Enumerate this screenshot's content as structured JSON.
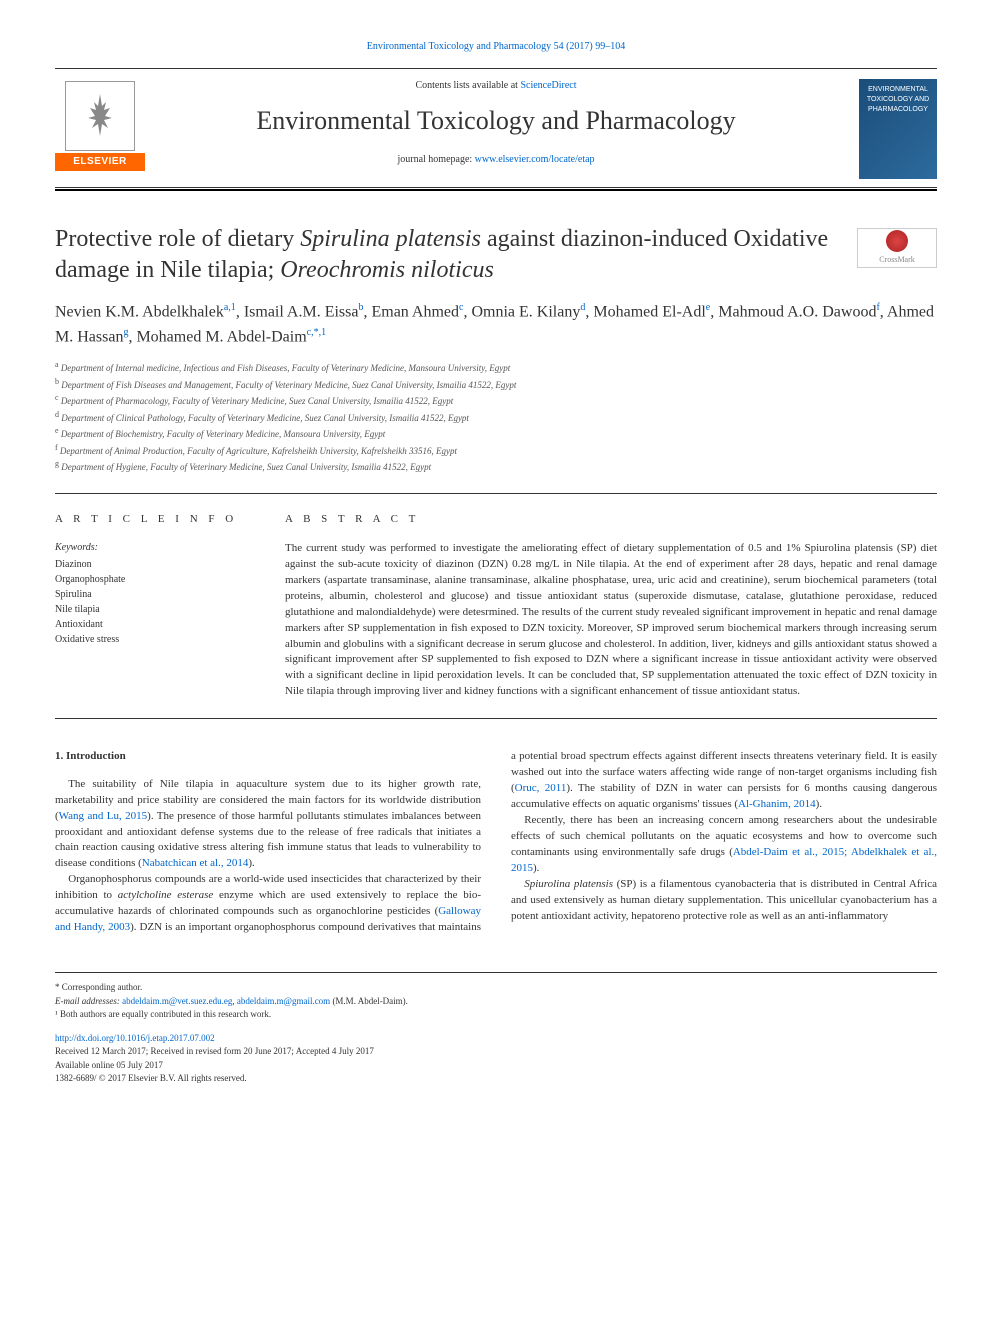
{
  "top_citation_link": "Environmental Toxicology and Pharmacology 54 (2017) 99–104",
  "header": {
    "contents_prefix": "Contents lists available at ",
    "contents_link": "ScienceDirect",
    "journal_name": "Environmental Toxicology and Pharmacology",
    "homepage_prefix": "journal homepage: ",
    "homepage_link": "www.elsevier.com/locate/etap",
    "elsevier": "ELSEVIER",
    "cover_text": "ENVIRONMENTAL TOXICOLOGY AND PHARMACOLOGY"
  },
  "crossmark_label": "CrossMark",
  "title_parts": {
    "pre": "Protective role of dietary ",
    "it1": "Spirulina platensis",
    "mid": " against diazinon-induced Oxidative damage in Nile tilapia; ",
    "it2": "Oreochromis niloticus"
  },
  "authors_html": "Nevien K.M. Abdelkhalek<sup>a,1</sup>, Ismail A.M. Eissa<sup>b</sup>, Eman Ahmed<sup>c</sup>, Omnia E. Kilany<sup>d</sup>, Mohamed El-Adl<sup>e</sup>, Mahmoud A.O. Dawood<sup>f</sup>, Ahmed M. Hassan<sup>g</sup>, Mohamed M. Abdel-Daim<sup>c,*,1</sup>",
  "affiliations": [
    {
      "sup": "a",
      "text": "Department of Internal medicine, Infectious and Fish Diseases, Faculty of Veterinary Medicine, Mansoura University, Egypt"
    },
    {
      "sup": "b",
      "text": "Department of Fish Diseases and Management, Faculty of Veterinary Medicine, Suez Canal University, Ismailia 41522, Egypt"
    },
    {
      "sup": "c",
      "text": "Department of Pharmacology, Faculty of Veterinary Medicine, Suez Canal University, Ismailia 41522, Egypt"
    },
    {
      "sup": "d",
      "text": "Department of Clinical Pathology, Faculty of Veterinary Medicine, Suez Canal University, Ismailia 41522, Egypt"
    },
    {
      "sup": "e",
      "text": "Department of Biochemistry, Faculty of Veterinary Medicine, Mansoura University, Egypt"
    },
    {
      "sup": "f",
      "text": "Department of Animal Production, Faculty of Agriculture, Kafrelsheikh University, Kafrelsheikh 33516, Egypt"
    },
    {
      "sup": "g",
      "text": "Department of Hygiene, Faculty of Veterinary Medicine, Suez Canal University, Ismailia 41522, Egypt"
    }
  ],
  "article_info": {
    "label": "A R T I C L E  I N F O",
    "keywords_label": "Keywords:",
    "keywords": [
      "Diazinon",
      "Organophosphate",
      "Spirulina",
      "Nile tilapia",
      "Antioxidant",
      "Oxidative stress"
    ]
  },
  "abstract": {
    "label": "A B S T R A C T",
    "text": "The current study was performed to investigate the ameliorating effect of dietary supplementation of 0.5 and 1% Spiurolina platensis (SP) diet against the sub-acute toxicity of diazinon (DZN) 0.28 mg/L in Nile tilapia. At the end of experiment after 28 days, hepatic and renal damage markers (aspartate transaminase, alanine transaminase, alkaline phosphatase, urea, uric acid and creatinine), serum biochemical parameters (total proteins, albumin, cholesterol and glucose) and tissue antioxidant status (superoxide dismutase, catalase, glutathione peroxidase, reduced glutathione and malondialdehyde) were detesrmined. The results of the current study revealed significant improvement in hepatic and renal damage markers after SP supplementation in fish exposed to DZN toxicity. Moreover, SP improved serum biochemical markers through increasing serum albumin and globulins with a significant decrease in serum glucose and cholesterol. In addition, liver, kidneys and gills antioxidant status showed a significant improvement after SP supplemented to fish exposed to DZN where a significant increase in tissue antioxidant activity were observed with a significant decline in lipid peroxidation levels. It can be concluded that, SP supplementation attenuated the toxic effect of DZN toxicity in Nile tilapia through improving liver and kidney functions with a significant enhancement of tissue antioxidant status."
  },
  "body": {
    "heading": "1. Introduction",
    "p1a": "The suitability of Nile tilapia in aquaculture system due to its higher growth rate, marketability and price stability are considered the main factors for its worldwide distribution (",
    "p1_link1": "Wang and Lu, 2015",
    "p1b": "). The presence of those harmful pollutants stimulates imbalances between prooxidant and antioxidant defense systems due to the release of free radicals that initiates a chain reaction causing oxidative stress altering fish immune status that leads to vulnerability to disease conditions (",
    "p1_link2": "Nabatchican et al., 2014",
    "p1c": ").",
    "p2a": "Organophosphorus compounds are a world-wide used insecticides that characterized by their inhibition to ",
    "p2_it": "actylcholine esterase",
    "p2b": " enzyme which are used extensively to replace the bio-accumulative hazards of chlorinated compounds such as organochlorine pesticides (",
    "p2_link": "Galloway and Handy, 2003",
    "p2c": "). DZN is an important organophosphorus compound derivatives that maintains a potential broad spectrum effects against different insects threatens veterinary field. It is easily washed out into the surface waters affecting wide range of non-target organisms including fish (",
    "p2_link2": "Oruc, 2011",
    "p2d": "). The stability of DZN in water can persists for 6 months causing dangerous accumulative effects on aquatic organisms' tissues (",
    "p2_link3": "Al-Ghanim, 2014",
    "p2e": ").",
    "p3a": "Recently, there has been an increasing concern among researchers about the undesirable effects of such chemical pollutants on the aquatic ecosystems and how to overcome such contaminants using environmentally safe drugs (",
    "p3_link": "Abdel-Daim et al., 2015; Abdelkhalek et al., 2015",
    "p3b": ").",
    "p4_it": "Spiurolina platensis",
    "p4a": " (SP) is a filamentous cyanobacteria that is distributed in Central Africa and used extensively as human dietary supplementation. This unicellular cyanobacterium has a potent antioxidant activity, hepatoreno protective role as well as an anti-inflammatory"
  },
  "footer": {
    "corr": "* Corresponding author.",
    "email_label": "E-mail addresses: ",
    "email1": "abdeldaim.m@vet.suez.edu.eg",
    "email_sep": ", ",
    "email2": "abdeldaim.m@gmail.com",
    "email_suffix": " (M.M. Abdel-Daim).",
    "note1": "¹ Both authors are equally contributed in this research work.",
    "doi": "http://dx.doi.org/10.1016/j.etap.2017.07.002",
    "received": "Received 12 March 2017; Received in revised form 20 June 2017; Accepted 4 July 2017",
    "available": "Available online 05 July 2017",
    "copyright": "1382-6689/ © 2017 Elsevier B.V. All rights reserved."
  },
  "colors": {
    "link": "#0066cc",
    "text": "#333333",
    "elsevier_orange": "#ff6600"
  },
  "typography": {
    "title_fontsize": 24,
    "journal_fontsize": 26,
    "body_fontsize": 11,
    "footer_fontsize": 9
  }
}
